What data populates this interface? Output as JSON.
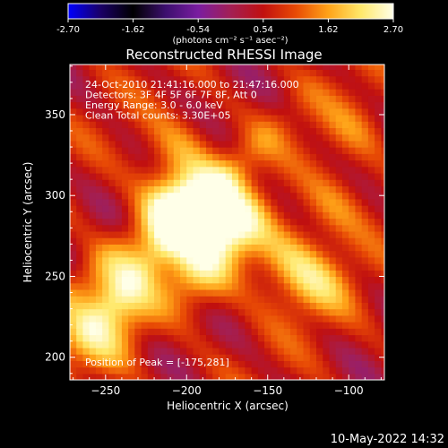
{
  "chart_data": {
    "type": "heatmap",
    "title": "Reconstructed RHESSI Image",
    "xlabel": "Heliocentric X (arcsec)",
    "ylabel": "Heliocentric Y (arcsec)",
    "xlim": [
      -272,
      -78
    ],
    "ylim": [
      186,
      381
    ],
    "xticks": [
      -250,
      -200,
      -150,
      -100
    ],
    "yticks": [
      200,
      250,
      300,
      350
    ],
    "colorbar": {
      "range": [
        -2.7,
        2.7
      ],
      "ticks": [
        "-2.70",
        "-1.62",
        "-0.54",
        "0.54",
        "1.62",
        "2.70"
      ],
      "unit_label": "(photons cm⁻² s⁻¹ asec⁻²)",
      "colormap": [
        "#0000ff",
        "#1a0066",
        "#000000",
        "#3c0f6e",
        "#7a1da0",
        "#a31f54",
        "#c1100f",
        "#e84a05",
        "#ffa318",
        "#ffe86a",
        "#ffffe8"
      ]
    },
    "annotations": [
      "24-Oct-2010 21:41:16.000 to 21:47:16.000",
      "Detectors: 3F 4F 5F 6F 7F 8F, Att 0",
      "Energy Range: 3.0 - 6.0 keV",
      "Clean    Total counts: 3.30E+05"
    ],
    "peak_label": "Position of Peak = [-175,281]",
    "peak": [
      -175,
      281
    ],
    "background_value": 0.0,
    "sources": [
      {
        "x": -175,
        "y": 281,
        "value": 2.7
      },
      {
        "x": -205,
        "y": 296,
        "value": 2.1
      },
      {
        "x": -195,
        "y": 250,
        "value": 1.5
      },
      {
        "x": -240,
        "y": 230,
        "value": 1.2
      },
      {
        "x": -140,
        "y": 260,
        "value": 1.1
      },
      {
        "x": -120,
        "y": 245,
        "value": 1.1
      },
      {
        "x": -205,
        "y": 330,
        "value": 0.9
      },
      {
        "x": -255,
        "y": 205,
        "value": 0.9
      },
      {
        "x": -110,
        "y": 295,
        "value": 0.9
      },
      {
        "x": -95,
        "y": 340,
        "value": 0.7
      }
    ]
  },
  "footer": {
    "timestamp": "10-May-2022 14:32"
  }
}
